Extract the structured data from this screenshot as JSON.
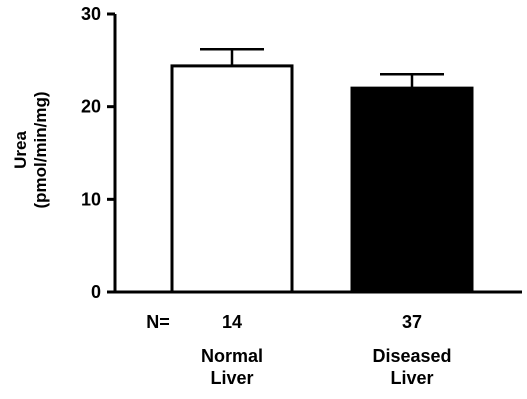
{
  "chart_data": {
    "type": "bar",
    "categories": [
      [
        "Normal",
        "Liver"
      ],
      [
        "Diseased",
        "Liver"
      ]
    ],
    "values": [
      24.4,
      22.0
    ],
    "error_upper": [
      26.2,
      23.5
    ],
    "bar_fills": [
      "#ffffff",
      "#000000"
    ],
    "n_prefix": "N=",
    "n_values": [
      "14",
      "37"
    ],
    "ylabel": [
      "Urea",
      "(pmol/min/mg)"
    ],
    "ylim": [
      0,
      30
    ],
    "yticks": [
      0,
      10,
      20,
      30
    ],
    "grid": false,
    "legend": "none"
  }
}
